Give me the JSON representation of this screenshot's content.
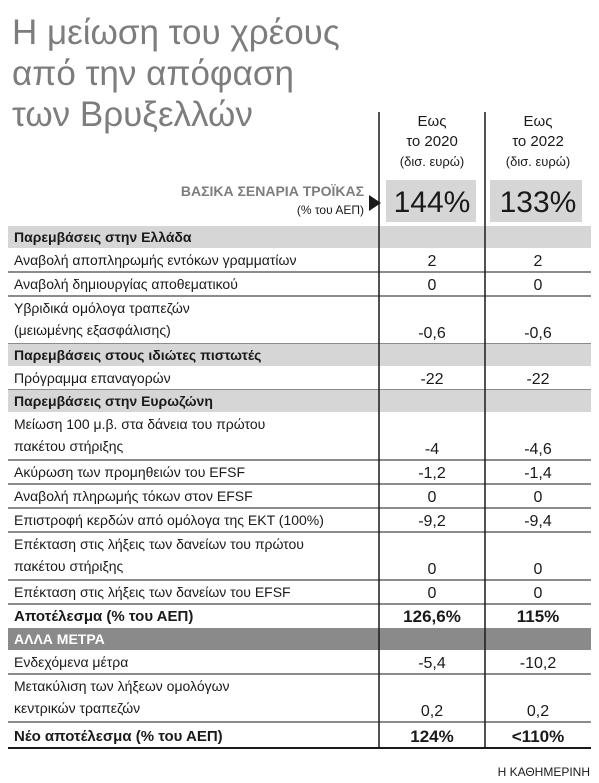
{
  "title": [
    "Η μείωση του χρέους",
    "από την απόφαση",
    "των Βρυξελλών"
  ],
  "columns": [
    {
      "label": [
        "Εως",
        "το 2020"
      ],
      "unit": "(δισ. ευρώ)"
    },
    {
      "label": [
        "Εως",
        "το 2022"
      ],
      "unit": "(δισ. ευρώ)"
    }
  ],
  "baseline": {
    "label": "ΒΑΣΙΚΑ ΣΕΝΑΡΙΑ ΤΡΟΪΚΑΣ",
    "sublabel": "(% του ΑΕΠ)",
    "values": [
      "144%",
      "133%"
    ]
  },
  "sections": [
    {
      "heading": "Παρεμβάσεις στην Ελλάδα",
      "rows": [
        {
          "label": [
            "Αναβολή αποπληρωμής εντόκων γραμματίων"
          ],
          "values": [
            "2",
            "2"
          ]
        },
        {
          "label": [
            "Αναβολή δημιουργίας αποθεματικού"
          ],
          "values": [
            "0",
            "0"
          ]
        },
        {
          "label": [
            "Υβριδικά ομόλογα τραπεζών",
            "(μειωμένης εξασφάλισης)"
          ],
          "values": [
            "-0,6",
            "-0,6"
          ]
        }
      ]
    },
    {
      "heading": "Παρεμβάσεις στους ιδιώτες πιστωτές",
      "rows": [
        {
          "label": [
            "Πρόγραμμα επαναγορών"
          ],
          "values": [
            "-22",
            "-22"
          ]
        }
      ]
    },
    {
      "heading": "Παρεμβάσεις στην Ευρωζώνη",
      "rows": [
        {
          "label": [
            "Μείωση 100 μ.β. στα δάνεια του πρώτου",
            "πακέτου στήριξης"
          ],
          "values": [
            "-4",
            "-4,6"
          ]
        },
        {
          "label": [
            "Ακύρωση των προμηθειών του EFSF"
          ],
          "values": [
            "-1,2",
            "-1,4"
          ]
        },
        {
          "label": [
            "Αναβολή πληρωμής τόκων στον EFSF"
          ],
          "values": [
            "0",
            "0"
          ]
        },
        {
          "label": [
            "Επιστροφή κερδών από ομόλογα της ΕΚΤ (100%)"
          ],
          "values": [
            "-9,2",
            "-9,4"
          ]
        },
        {
          "label": [
            "Επέκταση στις λήξεις των δανείων του πρώτου",
            "πακέτου στήριξης"
          ],
          "values": [
            "0",
            "0"
          ]
        },
        {
          "label": [
            "Επέκταση στις λήξεις των δανείων του EFSF"
          ],
          "values": [
            "0",
            "0"
          ]
        }
      ]
    }
  ],
  "result": {
    "label": "Αποτέλεσμα (% του ΑΕΠ)",
    "values": [
      "126,6%",
      "115%"
    ]
  },
  "other_measures": {
    "heading": "ΑΛΛΑ ΜΕΤΡΑ",
    "rows": [
      {
        "label": [
          "Ενδεχόμενα μέτρα"
        ],
        "values": [
          "-5,4",
          "-10,2"
        ]
      },
      {
        "label": [
          "Μετακύλιση των λήξεων ομολόγων",
          "κεντρικών τραπεζών"
        ],
        "values": [
          "0,2",
          "0,2"
        ]
      }
    ]
  },
  "new_result": {
    "label": "Νέο αποτέλεσμα (% του ΑΕΠ)",
    "values": [
      "124%",
      "<110%"
    ]
  },
  "source": "Η ΚΑΘΗΜΕΡΙΝΗ"
}
